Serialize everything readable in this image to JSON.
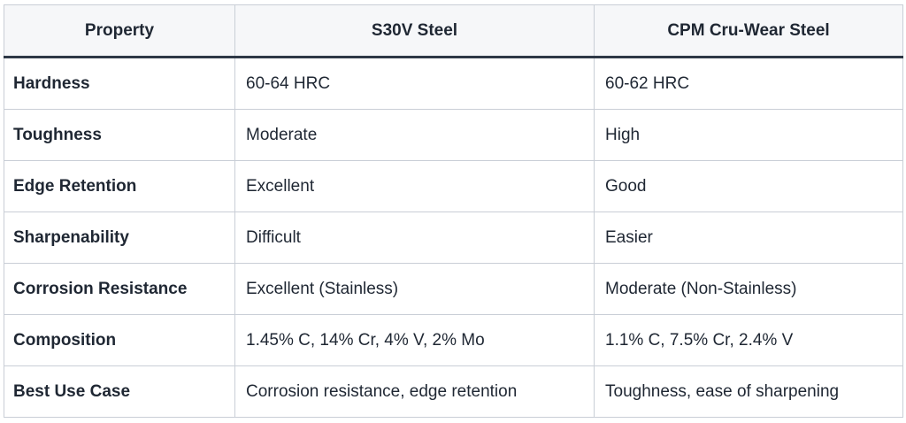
{
  "table": {
    "header": [
      "Property",
      "S30V Steel",
      "CPM Cru-Wear Steel"
    ],
    "rows": [
      [
        "Hardness",
        "60-64 HRC",
        "60-62 HRC"
      ],
      [
        "Toughness",
        "Moderate",
        "High"
      ],
      [
        "Edge Retention",
        "Excellent",
        "Good"
      ],
      [
        "Sharpenability",
        "Difficult",
        "Easier"
      ],
      [
        "Corrosion Resistance",
        "Excellent (Stainless)",
        "Moderate (Non-Stainless)"
      ],
      [
        "Composition",
        "1.45% C, 14% Cr, 4% V, 2% Mo",
        "1.1% C, 7.5% Cr, 2.4% V"
      ],
      [
        "Best Use Case",
        "Corrosion resistance, edge retention",
        "Toughness, ease of sharpening"
      ]
    ]
  }
}
